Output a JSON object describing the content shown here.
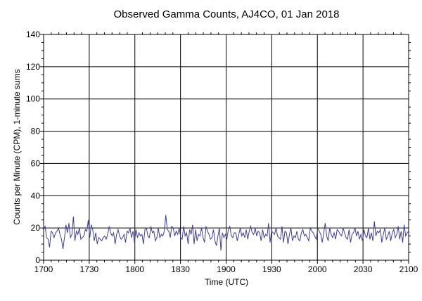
{
  "chart_data": {
    "type": "line",
    "title": "Observed Gamma Counts, AJ4CO, 01 Jan 2018",
    "xlabel": "Time (UTC)",
    "ylabel": "Counts per Minute (CPM), 1-minute sums",
    "x_ticks": [
      "1700",
      "1730",
      "1800",
      "1830",
      "1900",
      "1930",
      "2000",
      "2030",
      "2100"
    ],
    "y_ticks": [
      "0",
      "20",
      "40",
      "60",
      "80",
      "100",
      "120",
      "140"
    ],
    "xlim_minutes": [
      0,
      240
    ],
    "ylim": [
      0,
      140
    ],
    "grid": true,
    "series_color": "#3c3ca0",
    "series": [
      {
        "values": [
          19,
          21,
          14,
          13,
          8,
          18,
          17,
          14,
          17,
          18,
          20,
          16,
          13,
          7,
          14,
          22,
          17,
          23,
          14,
          16,
          27,
          12,
          18,
          16,
          20,
          13,
          14,
          15,
          19,
          18,
          25,
          14,
          22,
          19,
          12,
          17,
          10,
          14,
          13,
          12,
          14,
          15,
          13,
          16,
          21,
          17,
          15,
          17,
          10,
          16,
          19,
          15,
          13,
          14,
          16,
          11,
          18,
          17,
          20,
          14,
          18,
          11,
          19,
          14,
          17,
          15,
          16,
          10,
          19,
          20,
          15,
          14,
          21,
          17,
          18,
          12,
          14,
          20,
          14,
          16,
          15,
          18,
          28,
          19,
          18,
          14,
          21,
          20,
          15,
          18,
          16,
          20,
          14,
          13,
          21,
          15,
          17,
          10,
          19,
          16,
          22,
          10,
          19,
          12,
          16,
          15,
          20,
          14,
          11,
          21,
          18,
          16,
          13,
          14,
          19,
          12,
          9,
          15,
          20,
          6,
          17,
          14,
          16,
          13,
          19,
          21,
          15,
          14,
          17,
          17,
          12,
          16,
          20,
          15,
          17,
          14,
          19,
          13,
          18,
          21,
          17,
          16,
          20,
          15,
          18,
          17,
          12,
          19,
          14,
          16,
          15,
          23,
          11,
          18,
          17,
          16,
          20,
          15,
          14,
          13,
          21,
          11,
          18,
          17,
          10,
          16,
          20,
          12,
          15,
          14,
          18,
          13,
          12,
          17,
          19,
          15,
          16,
          14,
          12,
          20,
          18,
          17,
          15,
          13,
          20,
          18,
          16,
          11,
          17,
          23,
          15,
          12,
          20,
          16,
          14,
          17,
          13,
          19,
          18,
          16,
          15,
          20,
          17,
          14,
          13,
          19,
          11,
          16,
          17,
          20,
          15,
          18,
          13,
          16,
          12,
          19,
          15,
          14,
          20,
          13,
          17,
          12,
          24,
          15,
          18,
          17,
          19,
          11,
          16,
          20,
          13,
          15,
          18,
          12,
          17,
          19,
          14,
          16,
          21,
          13,
          18,
          11,
          22,
          15,
          17,
          18
        ]
      }
    ]
  }
}
